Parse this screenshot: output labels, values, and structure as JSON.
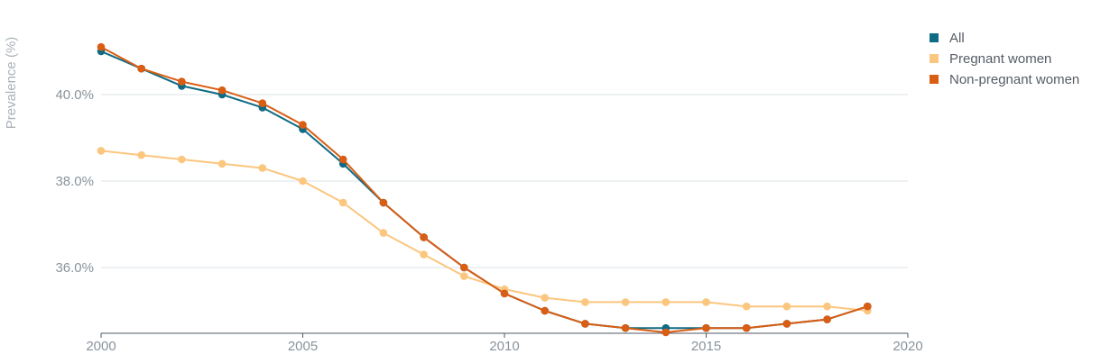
{
  "chart_data": {
    "type": "line",
    "ylabel": "Prevalence (%)",
    "xlabel": "",
    "x": [
      2000,
      2001,
      2002,
      2003,
      2004,
      2005,
      2006,
      2007,
      2008,
      2009,
      2010,
      2011,
      2012,
      2013,
      2014,
      2015,
      2016,
      2017,
      2018,
      2019
    ],
    "xlim": [
      2000,
      2020
    ],
    "ylim": [
      34.5,
      41.5
    ],
    "x_ticks": [
      2000,
      2005,
      2010,
      2015,
      2020
    ],
    "x_tick_labels": [
      "2000",
      "2005",
      "2010",
      "2015",
      "2020"
    ],
    "y_ticks": [
      36,
      38,
      40
    ],
    "y_tick_labels": [
      "36.0%",
      "38.0%",
      "40.0%"
    ],
    "grid": "horizontal",
    "legend_position": "top-right",
    "series": [
      {
        "name": "All",
        "color": "#0f6b84",
        "values": [
          41.0,
          40.6,
          40.2,
          40.0,
          39.7,
          39.2,
          38.4,
          37.5,
          36.7,
          36.0,
          35.4,
          35.0,
          34.7,
          34.6,
          34.6,
          34.6,
          34.6,
          34.7,
          34.8,
          35.1
        ]
      },
      {
        "name": "Pregnant women",
        "color": "#fbc67e",
        "values": [
          38.7,
          38.6,
          38.5,
          38.4,
          38.3,
          38.0,
          37.5,
          36.8,
          36.3,
          35.8,
          35.5,
          35.3,
          35.2,
          35.2,
          35.2,
          35.2,
          35.1,
          35.1,
          35.1,
          35.0
        ]
      },
      {
        "name": "Non-pregnant women",
        "color": "#d95d13",
        "values": [
          41.1,
          40.6,
          40.3,
          40.1,
          39.8,
          39.3,
          38.5,
          37.5,
          36.7,
          36.0,
          35.4,
          35.0,
          34.7,
          34.6,
          34.5,
          34.6,
          34.6,
          34.7,
          34.8,
          35.1
        ]
      }
    ]
  }
}
